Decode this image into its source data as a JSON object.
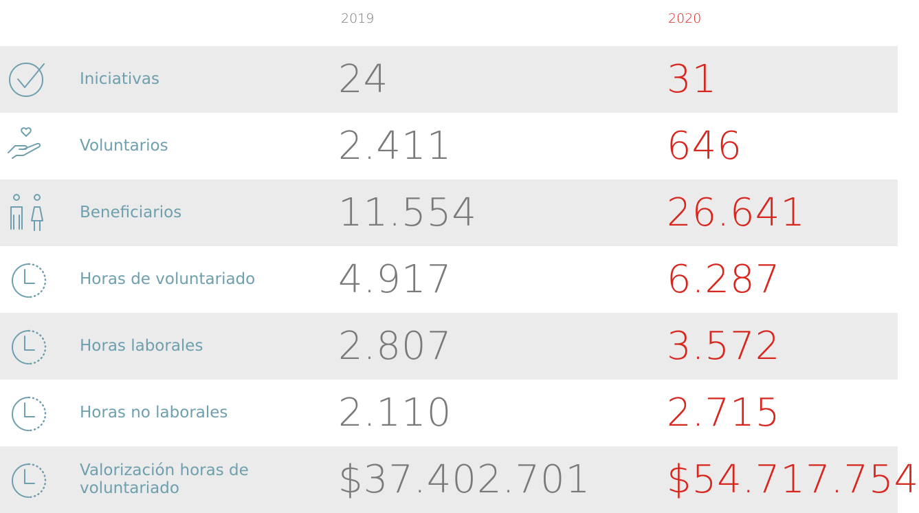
{
  "table": {
    "header": [
      "2019",
      "2020"
    ],
    "rows": [
      {
        "label": "Iniciativas",
        "values": [
          "24",
          "31"
        ]
      },
      {
        "label": "Voluntarios",
        "values": [
          "2.411",
          "646"
        ]
      },
      {
        "label": "Beneficiarios",
        "values": [
          "11.554",
          "26.641"
        ]
      },
      {
        "label": "Horas de voluntariado",
        "values": [
          "4.917",
          "6.287"
        ]
      },
      {
        "label": "Horas laborales",
        "values": [
          "2.807",
          "3.572"
        ]
      },
      {
        "label": "Horas no laborales",
        "values": [
          "2.110",
          "2.715"
        ]
      },
      {
        "label": "Valorización horas de voluntariado",
        "values": [
          "$37.402.701",
          "$54.717.754"
        ]
      }
    ]
  }
}
